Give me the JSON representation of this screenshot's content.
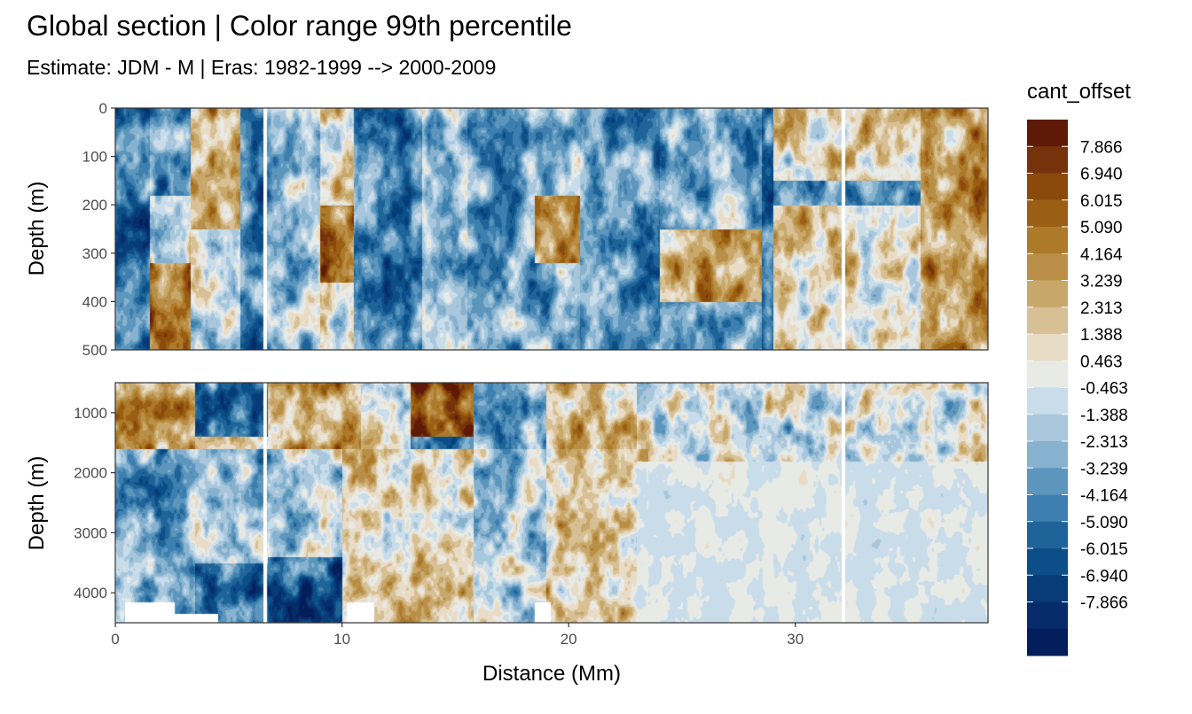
{
  "chart_data": {
    "type": "heatmap",
    "title": "Global section | Color range 99th percentile",
    "subtitle": "Estimate: JDM - M | Eras: 1982-1999 --> 2000-2009",
    "xlabel": "Distance (Mm)",
    "ylabel": "Depth (m)",
    "xlim": [
      0,
      38.5
    ],
    "x_ticks": [
      0,
      10,
      20,
      30
    ],
    "grid": true,
    "panels": [
      {
        "name": "upper",
        "ylim": [
          0,
          500
        ],
        "y_reversed": true,
        "y_ticks": [
          0,
          100,
          200,
          300,
          400,
          500
        ]
      },
      {
        "name": "lower",
        "ylim": [
          500,
          4500
        ],
        "y_reversed": true,
        "y_ticks": [
          1000,
          2000,
          3000,
          4000
        ]
      }
    ],
    "legend": {
      "title": "cant_offset",
      "placement": "right",
      "labels": [
        "7.866",
        "6.940",
        "6.015",
        "5.090",
        "4.164",
        "3.239",
        "2.313",
        "1.388",
        "0.463",
        "-0.463",
        "-1.388",
        "-2.313",
        "-3.239",
        "-4.164",
        "-5.090",
        "-6.015",
        "-6.940",
        "-7.866"
      ],
      "colors": [
        "#5e1a06",
        "#76320b",
        "#8a4a0c",
        "#9a5f14",
        "#ad7a2a",
        "#b98f48",
        "#c8a86a",
        "#d8c095",
        "#e8dcc6",
        "#e8eae6",
        "#c9dcea",
        "#a8c7dc",
        "#86b2cf",
        "#5d96bd",
        "#3d7fae",
        "#1f6499",
        "#0b4e88",
        "#083c78",
        "#062c6a",
        "#041e5c"
      ]
    }
  }
}
